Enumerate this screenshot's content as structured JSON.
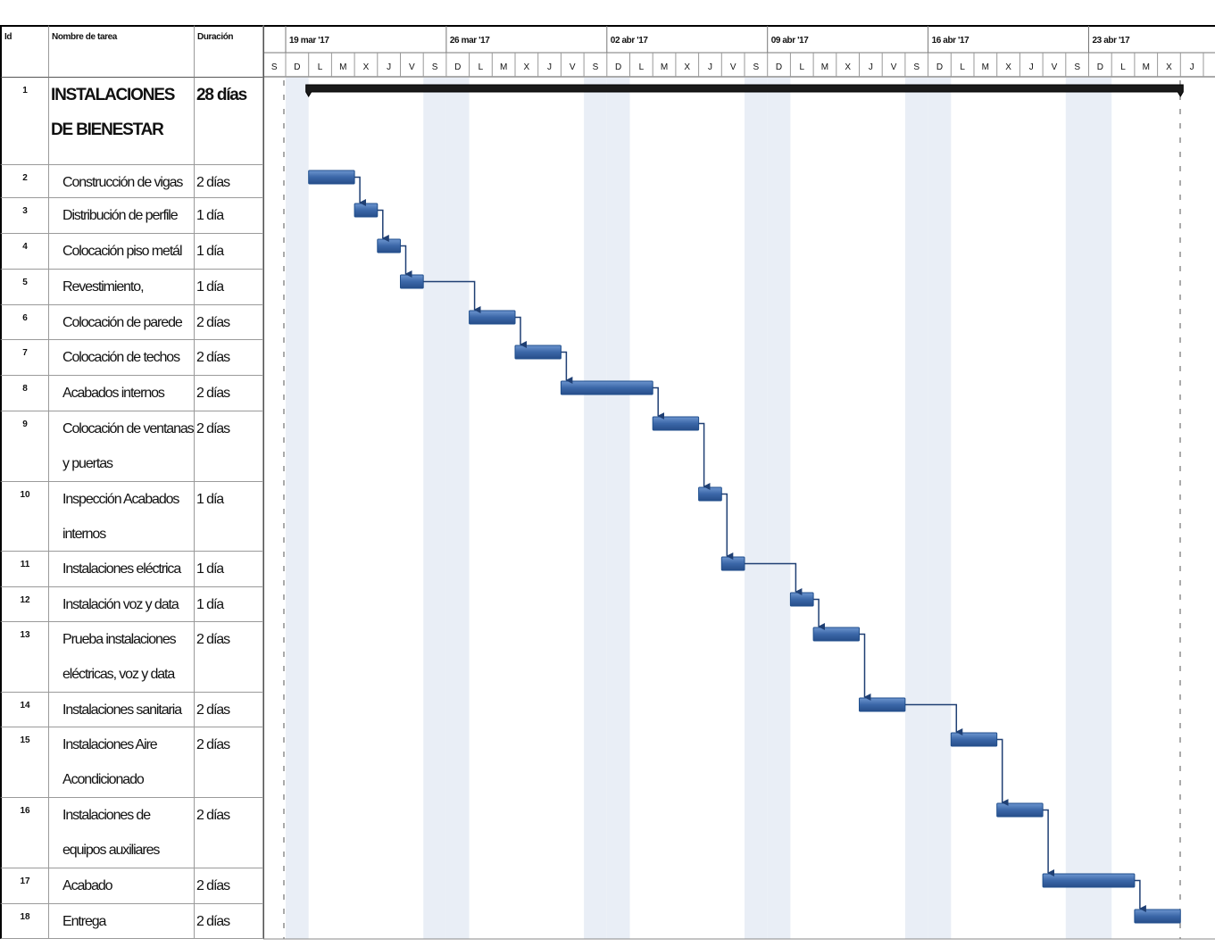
{
  "chart_data": {
    "type": "gantt",
    "columns": [
      "Id",
      "Nombre de tarea",
      "Duración"
    ],
    "weeks": [
      "19 mar '17",
      "26 mar '17",
      "02 abr '17",
      "09 abr '17",
      "16 abr '17",
      "23 abr '17"
    ],
    "days": [
      "S",
      "D",
      "L",
      "M",
      "X",
      "J",
      "V",
      "S",
      "D",
      "L",
      "M",
      "X",
      "J",
      "V",
      "S",
      "D",
      "L",
      "M",
      "X",
      "J",
      "V",
      "S",
      "D",
      "L",
      "M",
      "X",
      "J",
      "V",
      "S",
      "D",
      "L",
      "M",
      "X",
      "J",
      "V",
      "S",
      "D",
      "L",
      "M",
      "X",
      "J"
    ],
    "tasks": [
      {
        "id": "1",
        "name": "INSTALACIONES DE BIENESTAR",
        "duration": "28 días",
        "start": 2,
        "end": 40
      },
      {
        "id": "2",
        "name": "Construcción de vigas",
        "duration": "2 días",
        "start": 2,
        "end": 4
      },
      {
        "id": "3",
        "name": "Distribución de perfile",
        "duration": "1 día",
        "start": 4,
        "end": 5
      },
      {
        "id": "4",
        "name": "Colocación piso metál",
        "duration": "1 día",
        "start": 5,
        "end": 6
      },
      {
        "id": "5",
        "name": "Revestimiento,",
        "duration": "1 día",
        "start": 6,
        "end": 7
      },
      {
        "id": "6",
        "name": "Colocación de parede",
        "duration": "2 días",
        "start": 9,
        "end": 11
      },
      {
        "id": "7",
        "name": "Colocación de techos",
        "duration": "2 días",
        "start": 11,
        "end": 13
      },
      {
        "id": "8",
        "name": "Acabados internos",
        "duration": "2 días",
        "start": 13,
        "end": 17
      },
      {
        "id": "9",
        "name": "Colocación de ventanas y puertas",
        "duration": "2 días",
        "start": 17,
        "end": 19
      },
      {
        "id": "10",
        "name": "Inspección Acabados internos",
        "duration": "1 día",
        "start": 19,
        "end": 20
      },
      {
        "id": "11",
        "name": "Instalaciones eléctrica",
        "duration": "1 día",
        "start": 20,
        "end": 21
      },
      {
        "id": "12",
        "name": "Instalación voz y data",
        "duration": "1 día",
        "start": 23,
        "end": 24
      },
      {
        "id": "13",
        "name": "Prueba instalaciones eléctricas, voz y data",
        "duration": "2 días",
        "start": 24,
        "end": 26
      },
      {
        "id": "14",
        "name": "Instalaciones sanitaria",
        "duration": "2 días",
        "start": 26,
        "end": 28
      },
      {
        "id": "15",
        "name": "Instalaciones Aire Acondicionado",
        "duration": "2 días",
        "start": 30,
        "end": 32
      },
      {
        "id": "16",
        "name": "Instalaciones de equipos auxiliares",
        "duration": "2 días",
        "start": 32,
        "end": 34
      },
      {
        "id": "17",
        "name": "Acabado",
        "duration": "2 días",
        "start": 34,
        "end": 38
      },
      {
        "id": "18",
        "name": "Entrega",
        "duration": "2 días",
        "start": 38,
        "end": 40
      }
    ]
  }
}
